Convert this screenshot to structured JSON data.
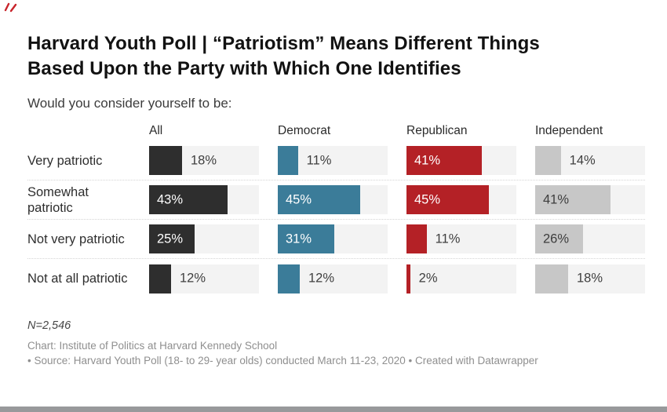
{
  "header": {
    "title_line1": "Harvard Youth Poll | “Patriotism” Means Different Things",
    "title_line2": "Based Upon the Party with Which One Identifies",
    "subtitle": "Would you consider yourself to be:"
  },
  "chart_data": {
    "type": "bar",
    "layout": "horizontal-grouped-small-multiples",
    "title": "Harvard Youth Poll | “Patriotism” Means Different Things Based Upon the Party with Which One Identifies",
    "subtitle": "Would you consider yourself to be:",
    "unit": "%",
    "axis_max": 60,
    "grid": false,
    "track_color": "#f3f3f3",
    "categories": [
      "Very patriotic",
      "Somewhat patriotic",
      "Not very patriotic",
      "Not at all patriotic"
    ],
    "series": [
      {
        "name": "All",
        "color": "#2e2e2e",
        "inside_label_color": "#ffffff",
        "values": [
          18,
          43,
          25,
          12
        ]
      },
      {
        "name": "Democrat",
        "color": "#3b7c99",
        "inside_label_color": "#ffffff",
        "values": [
          11,
          45,
          31,
          12
        ]
      },
      {
        "name": "Republican",
        "color": "#b42126",
        "inside_label_color": "#ffffff",
        "values": [
          41,
          45,
          11,
          2
        ]
      },
      {
        "name": "Independent",
        "color": "#c7c7c7",
        "inside_label_color": "#3d3d3d",
        "values": [
          14,
          41,
          26,
          18
        ]
      }
    ],
    "outside_label_color": "#3f3f3f"
  },
  "footer": {
    "note": "N=2,546",
    "credit_line": "Chart: Institute of Politics at Harvard Kennedy School",
    "source_line": "• Source: Harvard Youth Poll (18- to 29- year olds) conducted March 11-23, 2020 • Created with Datawrapper"
  }
}
